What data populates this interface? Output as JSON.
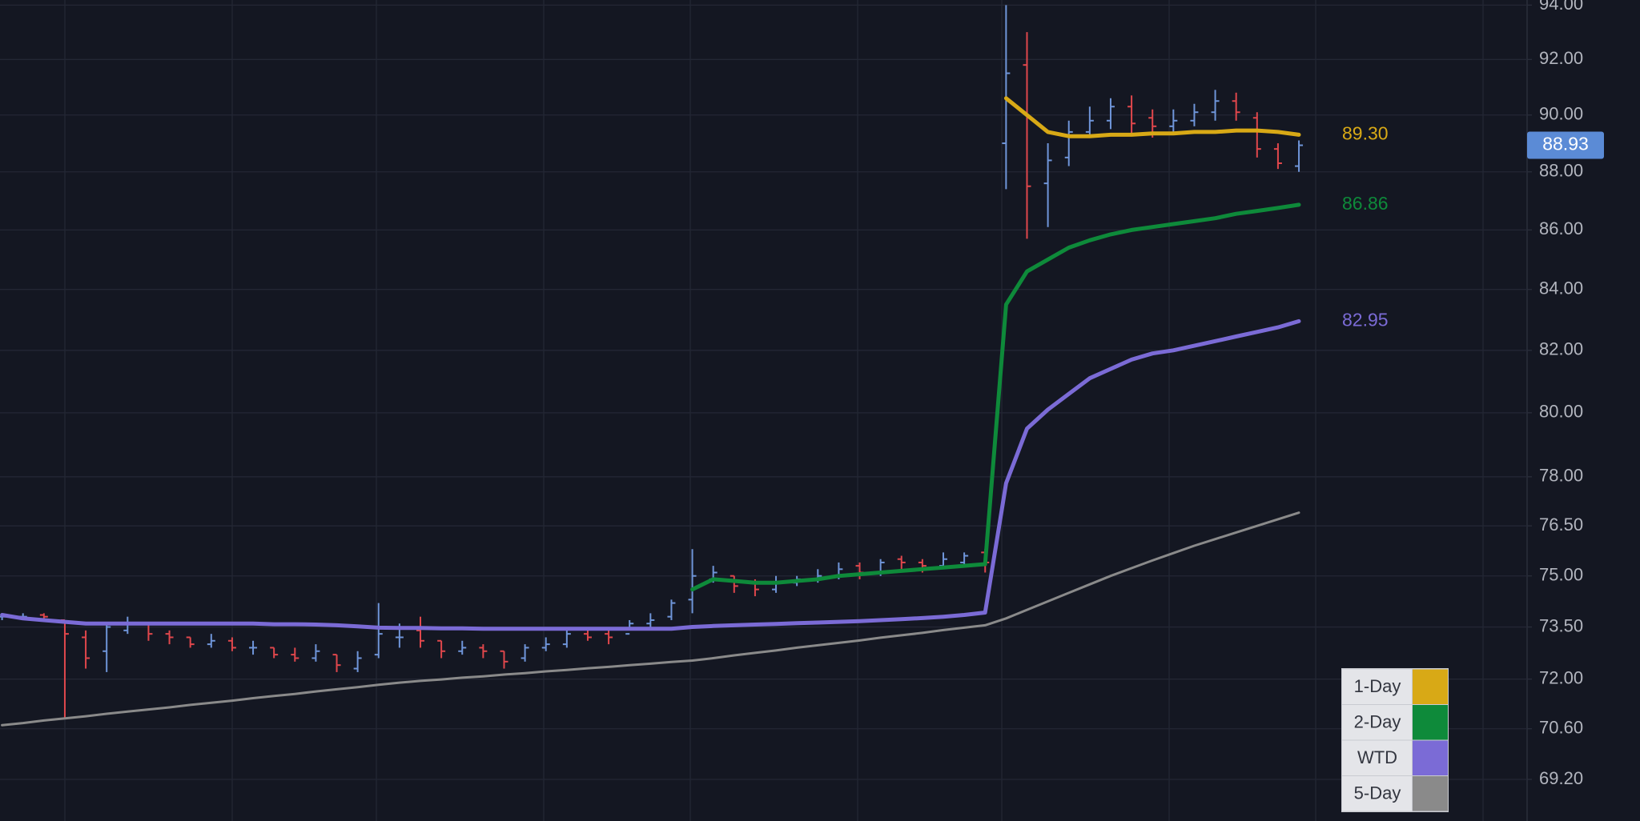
{
  "chart_data": {
    "type": "ohlc",
    "log_scale": true,
    "grid": true,
    "legend": "lower right",
    "ylim": [
      68.07,
      94.19
    ],
    "yticks": [
      {
        "value": 94,
        "label": "94.00"
      },
      {
        "value": 92,
        "label": "92.00"
      },
      {
        "value": 90,
        "label": "90.00"
      },
      {
        "value": 88,
        "label": "88.00"
      },
      {
        "value": 86,
        "label": "86.00"
      },
      {
        "value": 84,
        "label": "84.00"
      },
      {
        "value": 82,
        "label": "82.00"
      },
      {
        "value": 80,
        "label": "80.00"
      },
      {
        "value": 78,
        "label": "78.00"
      },
      {
        "value": 76.5,
        "label": "76.50"
      },
      {
        "value": 75,
        "label": "75.00"
      },
      {
        "value": 73.5,
        "label": "73.50"
      },
      {
        "value": 72,
        "label": "72.00"
      },
      {
        "value": 70.6,
        "label": "70.60"
      },
      {
        "value": 69.2,
        "label": "69.20"
      }
    ],
    "ohlc": {
      "up_color": "#6f95d9",
      "down_color": "#e0474c",
      "last_color": "#5b8bd6",
      "open": [
        73.8,
        73.8,
        73.85,
        73.7,
        73.2,
        72.8,
        73.4,
        73.6,
        73.3,
        73.2,
        73.0,
        73.1,
        72.9,
        72.9,
        72.7,
        72.6,
        72.7,
        72.3,
        72.7,
        73.2,
        73.4,
        73.1,
        72.8,
        72.9,
        72.8,
        72.6,
        72.9,
        73.0,
        73.3,
        73.3,
        73.3,
        73.6,
        73.8,
        74.3,
        74.9,
        75.0,
        74.8,
        74.6,
        74.8,
        74.9,
        75.0,
        75.3,
        75.1,
        75.5,
        75.4,
        75.3,
        75.4,
        75.7,
        89.0,
        91.8,
        87.6,
        88.5,
        89.4,
        89.8,
        90.3,
        89.9,
        89.6,
        89.8,
        90.1,
        90.5,
        89.9,
        88.8,
        88.2
      ],
      "high": [
        73.9,
        73.9,
        73.9,
        73.7,
        73.4,
        73.6,
        73.8,
        73.6,
        73.4,
        73.2,
        73.3,
        73.2,
        73.1,
        72.9,
        72.9,
        73.0,
        72.7,
        72.8,
        74.2,
        73.6,
        73.8,
        73.1,
        73.1,
        73.0,
        72.8,
        73.0,
        73.2,
        73.4,
        73.5,
        73.4,
        73.7,
        73.9,
        74.3,
        75.8,
        75.3,
        75.0,
        74.9,
        75.0,
        75.0,
        75.2,
        75.4,
        75.4,
        75.5,
        75.6,
        75.5,
        75.7,
        75.7,
        75.8,
        94.0,
        93.0,
        89.0,
        89.8,
        90.3,
        90.6,
        90.7,
        90.2,
        90.2,
        90.4,
        90.9,
        90.8,
        90.1,
        89.0,
        89.1
      ],
      "low": [
        73.7,
        73.7,
        73.7,
        70.9,
        72.3,
        72.2,
        73.3,
        73.1,
        73.0,
        72.9,
        72.9,
        72.8,
        72.7,
        72.6,
        72.5,
        72.5,
        72.2,
        72.2,
        72.6,
        72.9,
        72.9,
        72.6,
        72.7,
        72.6,
        72.3,
        72.5,
        72.8,
        72.9,
        73.1,
        73.0,
        73.4,
        73.5,
        73.7,
        73.9,
        74.8,
        74.5,
        74.4,
        74.5,
        74.7,
        74.8,
        74.9,
        74.9,
        75.0,
        75.2,
        75.1,
        75.2,
        75.3,
        75.1,
        87.4,
        85.7,
        86.1,
        88.2,
        89.2,
        89.5,
        89.3,
        89.2,
        89.4,
        89.6,
        89.8,
        89.8,
        88.5,
        88.1,
        88.0
      ],
      "close": [
        73.8,
        73.8,
        73.8,
        73.3,
        72.6,
        73.5,
        73.6,
        73.3,
        73.2,
        73.0,
        73.1,
        72.9,
        72.9,
        72.7,
        72.6,
        72.8,
        72.4,
        72.6,
        73.3,
        73.2,
        73.1,
        72.8,
        72.9,
        72.8,
        72.5,
        72.9,
        73.0,
        73.3,
        73.2,
        73.2,
        73.6,
        73.7,
        74.2,
        75.0,
        75.1,
        74.7,
        74.6,
        74.8,
        74.9,
        75.0,
        75.2,
        75.1,
        75.4,
        75.4,
        75.3,
        75.5,
        75.6,
        75.4,
        91.5,
        87.5,
        88.4,
        89.4,
        89.8,
        90.3,
        89.7,
        89.6,
        89.8,
        90.1,
        90.5,
        90.1,
        88.8,
        88.3,
        88.93
      ]
    },
    "series": [
      {
        "name": "1-Day",
        "color": "#d8a916",
        "end_label": true,
        "values": [
          null,
          null,
          null,
          null,
          null,
          null,
          null,
          null,
          null,
          null,
          null,
          null,
          null,
          null,
          null,
          null,
          null,
          null,
          null,
          null,
          null,
          null,
          null,
          null,
          null,
          null,
          null,
          null,
          null,
          null,
          null,
          null,
          null,
          null,
          null,
          null,
          null,
          null,
          null,
          null,
          null,
          null,
          null,
          null,
          null,
          null,
          null,
          null,
          90.6,
          90.0,
          89.4,
          89.25,
          89.25,
          89.3,
          89.3,
          89.35,
          89.35,
          89.4,
          89.4,
          89.45,
          89.45,
          89.4,
          89.3
        ],
        "value_labels": [
          null,
          null,
          null,
          null,
          null,
          null,
          null,
          null,
          null,
          null,
          null,
          null,
          null,
          null,
          null,
          null,
          null,
          null,
          null,
          null,
          null,
          null,
          null,
          null,
          null,
          null,
          null,
          null,
          null,
          null,
          null,
          null,
          null,
          null,
          null,
          null,
          null,
          null,
          null,
          null,
          null,
          null,
          null,
          null,
          null,
          null,
          null,
          null,
          null,
          null,
          null,
          null,
          null,
          null,
          null,
          null,
          null,
          null,
          null,
          null,
          null,
          null,
          "89.30"
        ]
      },
      {
        "name": "2-Day",
        "color": "#0e8a3a",
        "end_label": true,
        "values": [
          null,
          null,
          null,
          null,
          null,
          null,
          null,
          null,
          null,
          null,
          null,
          null,
          null,
          null,
          null,
          null,
          null,
          null,
          null,
          null,
          null,
          null,
          null,
          null,
          null,
          null,
          null,
          null,
          null,
          null,
          null,
          null,
          null,
          74.6,
          74.9,
          74.85,
          74.8,
          74.8,
          74.85,
          74.9,
          75.0,
          75.05,
          75.1,
          75.15,
          75.2,
          75.25,
          75.3,
          75.35,
          83.5,
          84.6,
          85.0,
          85.4,
          85.65,
          85.85,
          86.0,
          86.1,
          86.2,
          86.3,
          86.4,
          86.55,
          86.65,
          86.75,
          86.86
        ]
      },
      {
        "name": "WTD",
        "color": "#7b6bd6",
        "end_label": true,
        "values": [
          73.85,
          73.75,
          73.7,
          73.65,
          73.6,
          73.6,
          73.6,
          73.6,
          73.6,
          73.6,
          73.6,
          73.6,
          73.6,
          73.58,
          73.58,
          73.57,
          73.55,
          73.52,
          73.48,
          73.47,
          73.47,
          73.46,
          73.46,
          73.45,
          73.45,
          73.45,
          73.45,
          73.45,
          73.45,
          73.45,
          73.45,
          73.45,
          73.45,
          73.5,
          73.53,
          73.55,
          73.57,
          73.59,
          73.61,
          73.63,
          73.65,
          73.67,
          73.7,
          73.73,
          73.76,
          73.8,
          73.85,
          73.92,
          77.8,
          79.5,
          80.1,
          80.6,
          81.1,
          81.4,
          81.7,
          81.9,
          82.0,
          82.15,
          82.3,
          82.45,
          82.6,
          82.75,
          82.95
        ]
      },
      {
        "name": "5-Day",
        "color": "#8a8a8a",
        "end_label": false,
        "values": [
          70.7,
          70.76,
          70.83,
          70.89,
          70.95,
          71.02,
          71.08,
          71.14,
          71.2,
          71.27,
          71.33,
          71.39,
          71.46,
          71.52,
          71.58,
          71.65,
          71.71,
          71.77,
          71.84,
          71.9,
          71.95,
          71.99,
          72.04,
          72.08,
          72.13,
          72.17,
          72.22,
          72.26,
          72.31,
          72.35,
          72.4,
          72.44,
          72.49,
          72.53,
          72.6,
          72.68,
          72.75,
          72.82,
          72.9,
          72.97,
          73.04,
          73.11,
          73.19,
          73.26,
          73.33,
          73.41,
          73.48,
          73.55,
          73.75,
          74.0,
          74.25,
          74.5,
          74.75,
          75.0,
          75.23,
          75.46,
          75.68,
          75.9,
          76.1,
          76.3,
          76.5,
          76.7,
          76.9
        ]
      }
    ]
  }
}
